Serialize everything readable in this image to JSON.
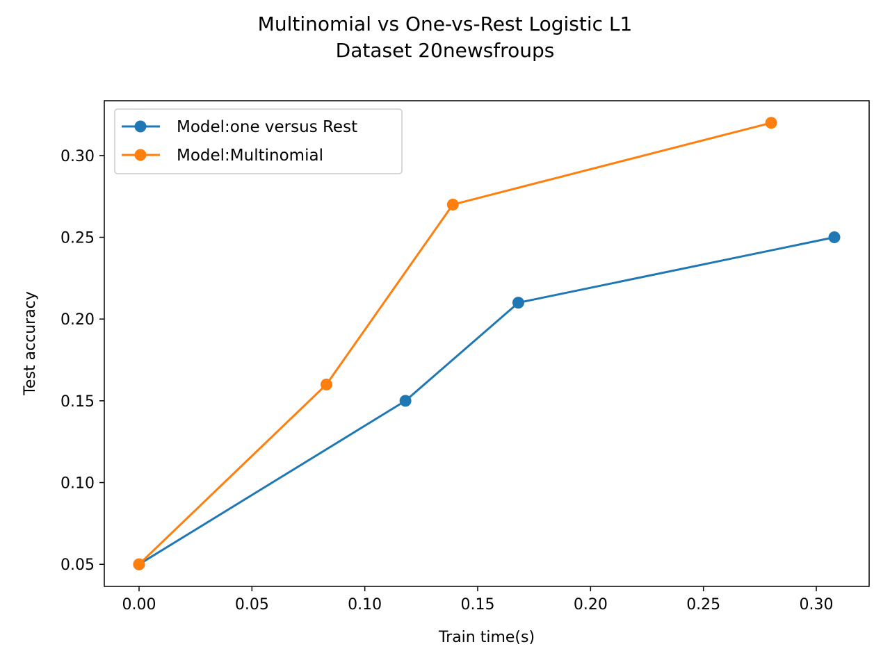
{
  "chart_data": {
    "type": "line",
    "title": "Multinomial vs One-vs-Rest Logistic L1",
    "subtitle": "Dataset 20newsfroups",
    "xlabel": "Train time(s)",
    "ylabel": "Test accuracy",
    "xlim": [
      -0.0154,
      0.3234
    ],
    "ylim": [
      0.0365,
      0.3335
    ],
    "xticks": [
      0.0,
      0.05,
      0.1,
      0.15,
      0.2,
      0.25,
      0.3
    ],
    "xtick_labels": [
      "0.00",
      "0.05",
      "0.10",
      "0.15",
      "0.20",
      "0.25",
      "0.30"
    ],
    "yticks": [
      0.05,
      0.1,
      0.15,
      0.2,
      0.25,
      0.3
    ],
    "ytick_labels": [
      "0.05",
      "0.10",
      "0.15",
      "0.20",
      "0.25",
      "0.30"
    ],
    "grid": false,
    "legend_position": "top-left",
    "series": [
      {
        "name": "Model:one versus Rest",
        "color": "#1f77b4",
        "marker": "circle",
        "x": [
          0.0,
          0.118,
          0.168,
          0.308
        ],
        "y": [
          0.05,
          0.15,
          0.21,
          0.25
        ]
      },
      {
        "name": "Model:Multinomial",
        "color": "#ff7f0e",
        "marker": "circle",
        "x": [
          0.0,
          0.083,
          0.139,
          0.28
        ],
        "y": [
          0.05,
          0.16,
          0.27,
          0.32
        ]
      }
    ]
  }
}
